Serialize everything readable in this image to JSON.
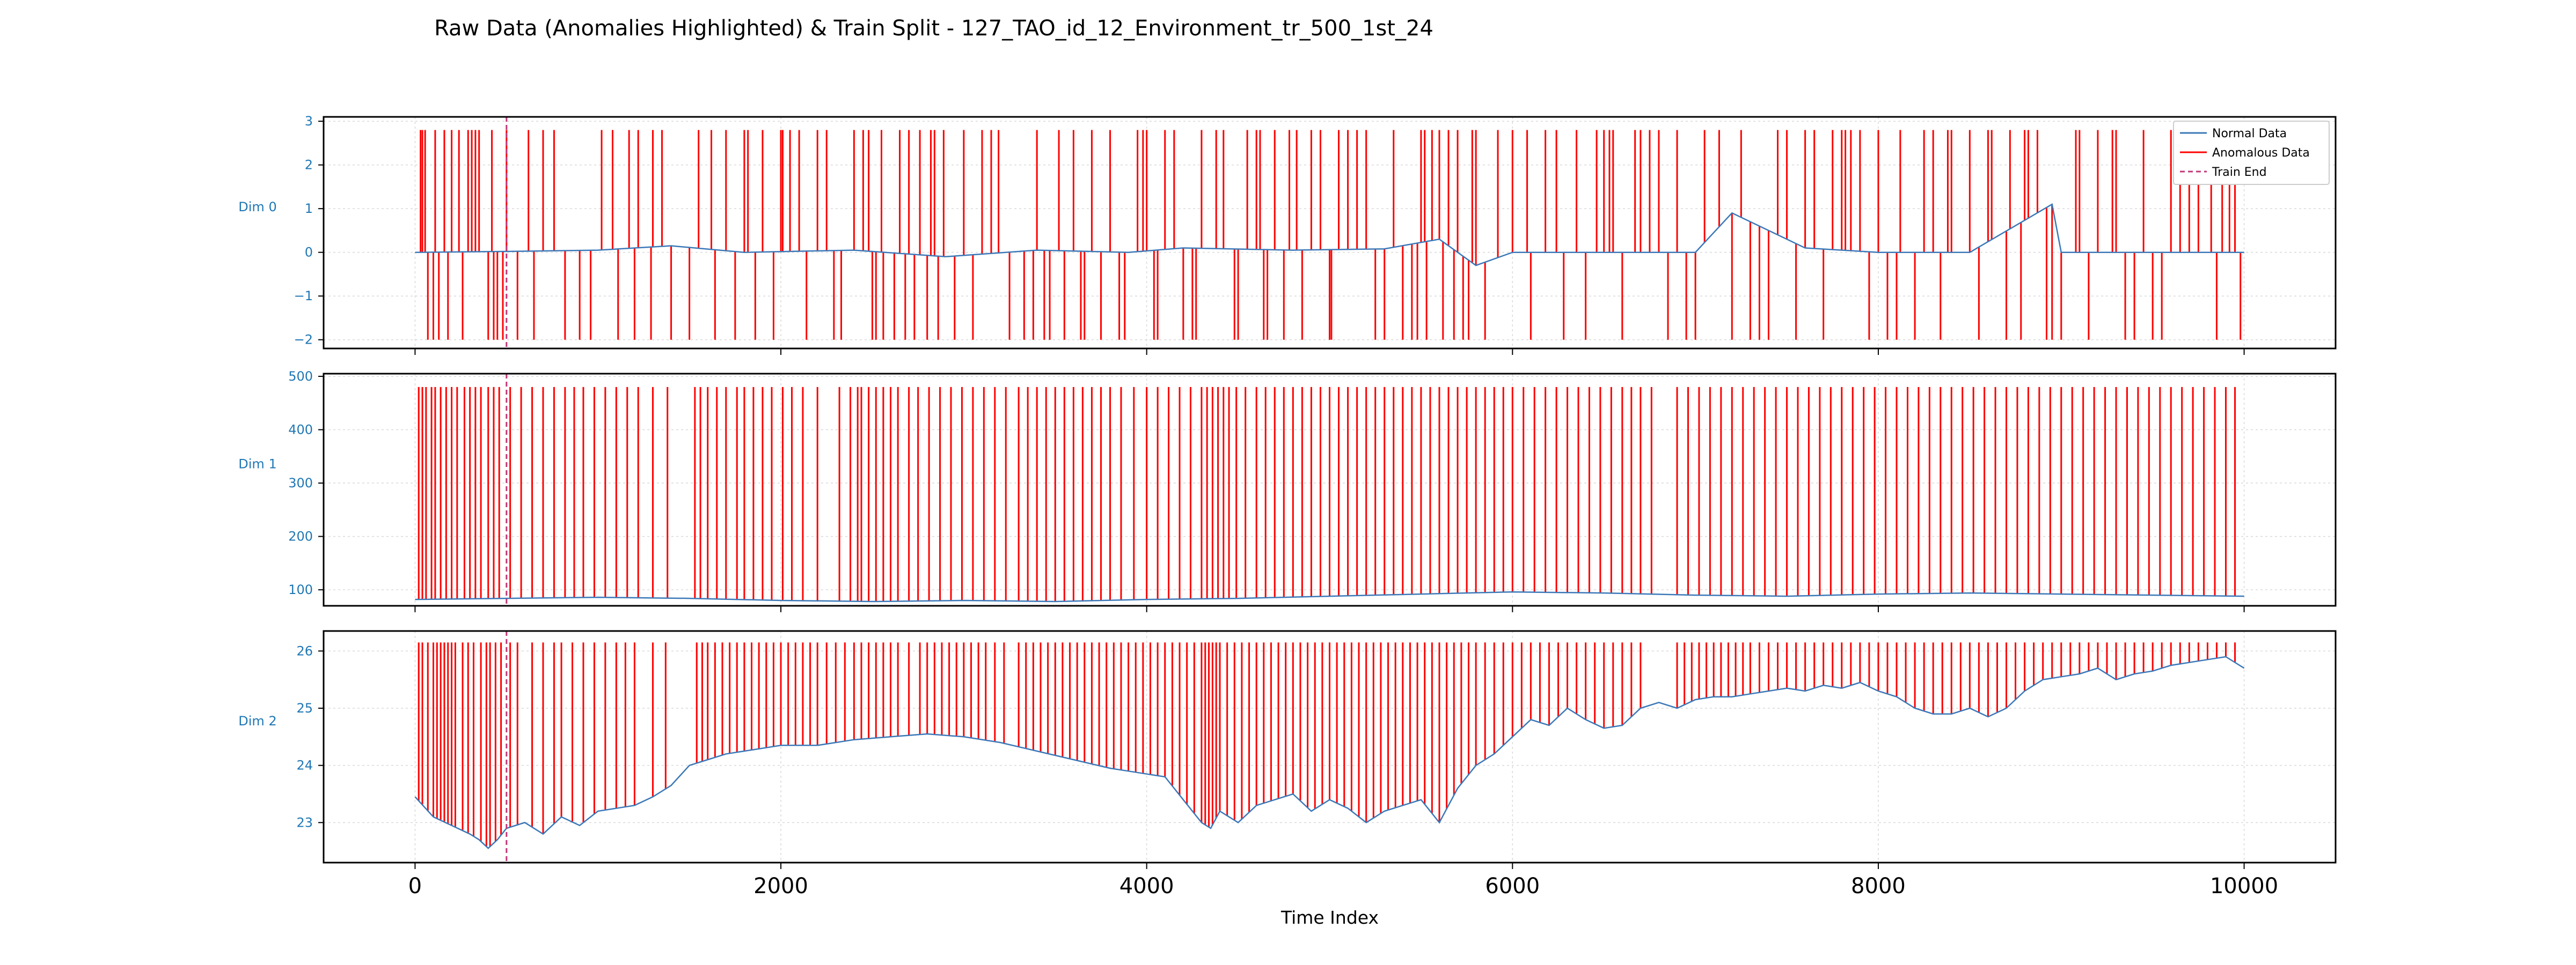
{
  "title": "Raw Data (Anomalies Highlighted) & Train Split - 127_TAO_id_12_Environment_tr_500_1st_24",
  "xlabel": "Time Index",
  "legend": {
    "normal": "Normal Data",
    "anomalous": "Anomalous Data",
    "train_end": "Train End"
  },
  "colors": {
    "normal": "#3b78b8",
    "anomalous": "#ff0000",
    "train_end": "#c2387a",
    "tick_labels": "#1f77b4",
    "grid": "#d9d9d9"
  },
  "chart_data": {
    "type": "line",
    "xlim": [
      -500,
      10500
    ],
    "xticks": [
      0,
      2000,
      4000,
      6000,
      8000,
      10000
    ],
    "x_range": [
      0,
      10000
    ],
    "train_end": 500,
    "grid": true,
    "legend_position": "upper-right of first subplot",
    "subplots": [
      {
        "ylabel": "Dim 0",
        "ylim": [
          -2.2,
          3.1
        ],
        "yticks": [
          -2,
          -1,
          0,
          1,
          2,
          3
        ],
        "anomaly_levels": [
          -2,
          2.8
        ],
        "normal_series": {
          "x": [
            0,
            500,
            1000,
            1400,
            1800,
            2400,
            2900,
            3400,
            3900,
            4200,
            4800,
            5300,
            5600,
            5800,
            6000,
            6500,
            7000,
            7200,
            7600,
            8000,
            8500,
            8950,
            9000,
            9500,
            10000
          ],
          "y": [
            0.0,
            0.02,
            0.05,
            0.15,
            0.0,
            0.05,
            -0.1,
            0.05,
            0.0,
            0.1,
            0.05,
            0.08,
            0.3,
            -0.3,
            0.0,
            0.0,
            0.0,
            0.9,
            0.1,
            0.0,
            0.0,
            1.1,
            0.0,
            0.0,
            0.0
          ]
        },
        "anomalies_high": [
          30,
          40,
          55,
          110,
          160,
          200,
          240,
          290,
          310,
          330,
          350,
          420,
          500,
          620,
          700,
          760,
          1020,
          1080,
          1170,
          1220,
          1300,
          1350,
          1550,
          1620,
          1700,
          1800,
          1820,
          1900,
          2000,
          2010,
          2050,
          2100,
          2200,
          2250,
          2400,
          2450,
          2480,
          2550,
          2650,
          2700,
          2760,
          2820,
          2840,
          2890,
          3000,
          3100,
          3150,
          3190,
          3400,
          3520,
          3600,
          3700,
          3800,
          3950,
          3980,
          4000,
          4100,
          4150,
          4300,
          4380,
          4420,
          4550,
          4600,
          4620,
          4700,
          4780,
          4820,
          4900,
          4950,
          5050,
          5100,
          5150,
          5200,
          5350,
          5500,
          5520,
          5560,
          5600,
          5650,
          5700,
          5780,
          5800,
          5920,
          6000,
          6080,
          6180,
          6240,
          6350,
          6460,
          6500,
          6530,
          6550,
          6670,
          6700,
          6750,
          6800,
          6900,
          7050,
          7130,
          7250,
          7450,
          7500,
          7600,
          7650,
          7750,
          7800,
          7820,
          7850,
          7900,
          8000,
          8120,
          8250,
          8300,
          8380,
          8400,
          8500,
          8600,
          8620,
          8720,
          8800,
          8820,
          8870,
          9080,
          9100,
          9200,
          9280,
          9300,
          9450,
          9600,
          9650,
          9700,
          9750,
          9820,
          9880,
          9920,
          9950
        ],
        "anomalies_low": [
          70,
          100,
          130,
          180,
          260,
          400,
          430,
          450,
          480,
          560,
          650,
          820,
          900,
          960,
          1110,
          1200,
          1290,
          1400,
          1500,
          1640,
          1750,
          1860,
          1960,
          2140,
          2290,
          2330,
          2500,
          2520,
          2560,
          2620,
          2680,
          2730,
          2800,
          2860,
          2950,
          3050,
          3250,
          3330,
          3380,
          3440,
          3470,
          3550,
          3640,
          3660,
          3750,
          3850,
          3880,
          4040,
          4060,
          4200,
          4250,
          4270,
          4480,
          4500,
          4640,
          4660,
          4750,
          4850,
          5000,
          5010,
          5250,
          5300,
          5400,
          5450,
          5480,
          5530,
          5620,
          5680,
          5730,
          5760,
          5850,
          6100,
          6280,
          6400,
          6600,
          6850,
          6950,
          7000,
          7200,
          7300,
          7350,
          7400,
          7550,
          7700,
          7950,
          8050,
          8100,
          8200,
          8340,
          8550,
          8700,
          8780,
          8920,
          8950,
          9000,
          9150,
          9350,
          9400,
          9500,
          9550,
          9850,
          9980
        ]
      },
      {
        "ylabel": "Dim 1",
        "ylim": [
          70,
          505
        ],
        "yticks": [
          100,
          200,
          300,
          400,
          500
        ],
        "anomaly_levels": [
          480
        ],
        "normal_series": {
          "x": [
            0,
            500,
            1000,
            1500,
            2000,
            2500,
            3000,
            3500,
            4000,
            4500,
            5000,
            5500,
            6000,
            6500,
            7000,
            7500,
            8000,
            8500,
            9000,
            9500,
            10000
          ],
          "y": [
            82,
            84,
            86,
            84,
            80,
            78,
            80,
            78,
            82,
            84,
            88,
            92,
            96,
            94,
            90,
            88,
            92,
            94,
            92,
            90,
            88
          ]
        },
        "anomalies_high": [
          20,
          40,
          60,
          90,
          110,
          140,
          170,
          200,
          230,
          270,
          300,
          330,
          360,
          400,
          430,
          460,
          520,
          580,
          640,
          700,
          760,
          820,
          870,
          920,
          980,
          1040,
          1100,
          1160,
          1220,
          1300,
          1380,
          1530,
          1560,
          1600,
          1650,
          1700,
          1760,
          1800,
          1850,
          1900,
          1950,
          2010,
          2060,
          2120,
          2200,
          2320,
          2380,
          2420,
          2440,
          2480,
          2520,
          2560,
          2600,
          2640,
          2700,
          2750,
          2810,
          2870,
          2930,
          2990,
          3050,
          3110,
          3170,
          3230,
          3300,
          3350,
          3400,
          3450,
          3500,
          3550,
          3600,
          3650,
          3700,
          3750,
          3800,
          3860,
          3930,
          4000,
          4060,
          4120,
          4180,
          4240,
          4300,
          4330,
          4360,
          4390,
          4420,
          4450,
          4490,
          4540,
          4600,
          4650,
          4700,
          4750,
          4800,
          4850,
          4900,
          4950,
          5000,
          5050,
          5100,
          5150,
          5200,
          5250,
          5300,
          5350,
          5400,
          5450,
          5500,
          5550,
          5600,
          5650,
          5700,
          5750,
          5800,
          5850,
          5900,
          5950,
          6000,
          6060,
          6120,
          6180,
          6240,
          6300,
          6360,
          6420,
          6480,
          6540,
          6600,
          6650,
          6700,
          6760,
          6900,
          6960,
          7020,
          7080,
          7140,
          7200,
          7260,
          7320,
          7380,
          7440,
          7500,
          7560,
          7620,
          7680,
          7740,
          7800,
          7860,
          7920,
          7980,
          8040,
          8100,
          8160,
          8220,
          8280,
          8340,
          8400,
          8460,
          8520,
          8580,
          8640,
          8700,
          8760,
          8820,
          8880,
          8940,
          9000,
          9060,
          9120,
          9180,
          9240,
          9300,
          9360,
          9420,
          9480,
          9540,
          9600,
          9660,
          9720,
          9780,
          9840,
          9900,
          9950
        ]
      },
      {
        "ylabel": "Dim 2",
        "ylim": [
          22.3,
          26.35
        ],
        "yticks": [
          23,
          24,
          25,
          26
        ],
        "anomaly_levels": [
          26.15
        ],
        "normal_series": {
          "x": [
            0,
            100,
            200,
            300,
            350,
            400,
            450,
            500,
            600,
            700,
            800,
            900,
            1000,
            1100,
            1200,
            1300,
            1400,
            1500,
            1600,
            1700,
            1800,
            1900,
            2000,
            2200,
            2400,
            2600,
            2800,
            3000,
            3200,
            3400,
            3600,
            3800,
            3900,
            4000,
            4100,
            4200,
            4300,
            4350,
            4400,
            4500,
            4600,
            4700,
            4800,
            4900,
            5000,
            5100,
            5200,
            5300,
            5400,
            5500,
            5600,
            5700,
            5800,
            5900,
            6000,
            6100,
            6200,
            6300,
            6400,
            6500,
            6600,
            6700,
            6800,
            6900,
            7000,
            7100,
            7200,
            7300,
            7400,
            7500,
            7600,
            7700,
            7800,
            7900,
            8000,
            8100,
            8200,
            8300,
            8400,
            8500,
            8600,
            8700,
            8800,
            8900,
            9000,
            9100,
            9200,
            9300,
            9400,
            9500,
            9600,
            9700,
            9800,
            9900,
            10000
          ],
          "y": [
            23.45,
            23.1,
            22.95,
            22.8,
            22.7,
            22.55,
            22.7,
            22.9,
            23.0,
            22.8,
            23.1,
            22.95,
            23.2,
            23.25,
            23.3,
            23.45,
            23.65,
            24.0,
            24.1,
            24.2,
            24.25,
            24.3,
            24.35,
            24.35,
            24.45,
            24.5,
            24.55,
            24.5,
            24.4,
            24.25,
            24.1,
            23.95,
            23.9,
            23.85,
            23.8,
            23.4,
            23.0,
            22.9,
            23.2,
            23.0,
            23.3,
            23.4,
            23.5,
            23.2,
            23.4,
            23.25,
            23.0,
            23.2,
            23.3,
            23.4,
            23.0,
            23.6,
            24.0,
            24.2,
            24.5,
            24.8,
            24.7,
            25.0,
            24.8,
            24.65,
            24.7,
            25.0,
            25.1,
            25.0,
            25.15,
            25.2,
            25.2,
            25.25,
            25.3,
            25.35,
            25.3,
            25.4,
            25.35,
            25.45,
            25.3,
            25.2,
            25.0,
            24.9,
            24.9,
            25.0,
            24.85,
            25.0,
            25.3,
            25.5,
            25.55,
            25.6,
            25.7,
            25.5,
            25.6,
            25.65,
            25.75,
            25.8,
            25.85,
            25.9,
            25.7
          ]
        },
        "anomalies_high": [
          20,
          40,
          70,
          100,
          120,
          140,
          160,
          180,
          200,
          220,
          260,
          290,
          320,
          360,
          390,
          410,
          440,
          470,
          520,
          560,
          640,
          700,
          760,
          800,
          860,
          920,
          980,
          1040,
          1100,
          1150,
          1200,
          1300,
          1370,
          1540,
          1570,
          1600,
          1640,
          1680,
          1720,
          1760,
          1800,
          1840,
          1880,
          1920,
          1960,
          2000,
          2040,
          2080,
          2120,
          2160,
          2200,
          2250,
          2300,
          2350,
          2400,
          2440,
          2480,
          2520,
          2560,
          2600,
          2640,
          2700,
          2760,
          2800,
          2840,
          2880,
          2920,
          2960,
          3000,
          3040,
          3080,
          3120,
          3170,
          3220,
          3300,
          3340,
          3380,
          3420,
          3460,
          3500,
          3540,
          3580,
          3620,
          3660,
          3700,
          3740,
          3780,
          3820,
          3860,
          3900,
          3940,
          3980,
          4020,
          4060,
          4100,
          4140,
          4180,
          4220,
          4260,
          4300,
          4320,
          4340,
          4360,
          4380,
          4400,
          4440,
          4480,
          4520,
          4560,
          4600,
          4640,
          4680,
          4720,
          4760,
          4800,
          4840,
          4880,
          4920,
          4960,
          5000,
          5040,
          5080,
          5120,
          5160,
          5200,
          5240,
          5280,
          5320,
          5360,
          5400,
          5440,
          5480,
          5520,
          5560,
          5600,
          5640,
          5680,
          5720,
          5760,
          5800,
          5850,
          5900,
          5950,
          6000,
          6050,
          6100,
          6150,
          6200,
          6250,
          6300,
          6350,
          6400,
          6450,
          6500,
          6550,
          6600,
          6650,
          6700,
          6900,
          6940,
          6980,
          7020,
          7060,
          7100,
          7140,
          7180,
          7220,
          7260,
          7300,
          7350,
          7400,
          7450,
          7500,
          7550,
          7600,
          7650,
          7700,
          7750,
          7800,
          7850,
          7900,
          7950,
          8000,
          8050,
          8100,
          8150,
          8200,
          8250,
          8300,
          8350,
          8400,
          8450,
          8500,
          8550,
          8600,
          8650,
          8700,
          8750,
          8800,
          8850,
          8900,
          8950,
          9000,
          9050,
          9100,
          9150,
          9200,
          9250,
          9300,
          9350,
          9400,
          9450,
          9500,
          9550,
          9600,
          9650,
          9700,
          9750,
          9800,
          9850,
          9900,
          9950
        ]
      }
    ]
  }
}
